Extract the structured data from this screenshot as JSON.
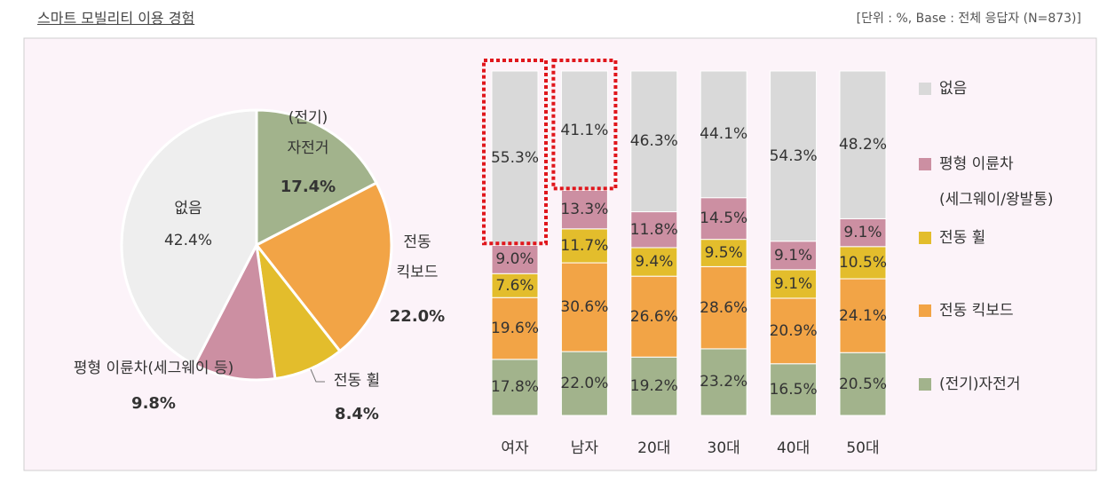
{
  "header": {
    "title": "스마트 모빌리티 이용 경험",
    "note": "[단위 : %, Base : 전체 응답자 (N=873)]"
  },
  "chart_data": [
    {
      "type": "pie",
      "labels": [
        "(전기)\n자전거",
        "전동\n킥보드",
        "전동 휠",
        "평형 이륜차(세그웨이 등)",
        "없음"
      ],
      "values": [
        17.4,
        22.0,
        8.4,
        9.8,
        42.4
      ],
      "value_labels": [
        "17.4%",
        "22.0%",
        "8.4%",
        "9.8%",
        "42.4%"
      ],
      "colors": [
        "#a2b38c",
        "#f2a446",
        "#e3bd2c",
        "#cc8fa2",
        "#eeeeee"
      ]
    },
    {
      "type": "stacked_bar",
      "categories": [
        "여자",
        "남자",
        "20대",
        "30대",
        "40대",
        "50대"
      ],
      "series": [
        {
          "name": "(전기)자전거",
          "color": "#a2b38c",
          "values": [
            17.8,
            22.0,
            19.2,
            23.2,
            16.5,
            20.5
          ],
          "value_labels": [
            "17.8%",
            "22.0%",
            "19.2%",
            "23.2%",
            "16.5%",
            "20.5%"
          ]
        },
        {
          "name": "전동 킥보드",
          "color": "#f2a446",
          "values": [
            19.6,
            30.6,
            26.6,
            28.6,
            20.9,
            24.1
          ],
          "value_labels": [
            "19.6%",
            "30.6%",
            "26.6%",
            "28.6%",
            "20.9%",
            "24.1%"
          ]
        },
        {
          "name": "전동 휠",
          "color": "#e3bd2c",
          "values": [
            7.6,
            11.7,
            9.4,
            9.5,
            9.1,
            10.5
          ],
          "value_labels": [
            "7.6%",
            "11.7%",
            "9.4%",
            "9.5%",
            "9.1%",
            "10.5%"
          ]
        },
        {
          "name": "평형 이륜차\n(세그웨이/왕발통)",
          "color": "#cc8fa2",
          "values": [
            9.0,
            13.3,
            11.8,
            14.5,
            9.1,
            9.1
          ],
          "value_labels": [
            "9.0%",
            "13.3%",
            "11.8%",
            "14.5%",
            "9.1%",
            "9.1%"
          ]
        },
        {
          "name": "없음",
          "color": "#d9d9d9",
          "values": [
            55.3,
            41.1,
            46.3,
            44.1,
            54.3,
            48.2
          ],
          "value_labels": [
            "55.3%",
            "41.1%",
            "46.3%",
            "44.1%",
            "54.3%",
            "48.2%"
          ]
        }
      ]
    }
  ]
}
